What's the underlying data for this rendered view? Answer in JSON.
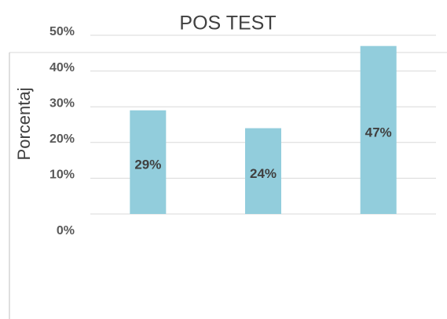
{
  "chart_data": {
    "type": "bar",
    "title": "POS TEST",
    "y_label": "Porcentaj",
    "categories": [
      null,
      null,
      null
    ],
    "values": [
      29,
      24,
      47
    ],
    "value_labels": [
      "29%",
      "24%",
      "47%"
    ],
    "color": "#92cddc",
    "ylim": [
      0,
      50
    ],
    "yticks": [
      {
        "value": 0,
        "label": "0%"
      },
      {
        "value": 10,
        "label": "10%"
      },
      {
        "value": 20,
        "label": "20%"
      },
      {
        "value": 30,
        "label": "30%"
      },
      {
        "value": 40,
        "label": "40%"
      },
      {
        "value": 50,
        "label": "50%"
      }
    ],
    "grid": true
  }
}
